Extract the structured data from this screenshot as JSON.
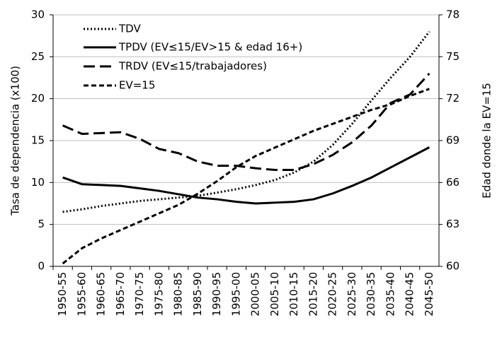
{
  "chart_data": {
    "type": "line",
    "categories": [
      "1950-55",
      "1955-60",
      "1960-65",
      "1965-70",
      "1970-75",
      "1975-80",
      "1980-85",
      "1985-90",
      "1990-95",
      "1995-00",
      "2000-05",
      "2005-10",
      "2010-15",
      "2015-20",
      "2020-25",
      "2025-30",
      "2030-35",
      "2035-40",
      "2040-45",
      "2045-50"
    ],
    "series": [
      {
        "name": "TDV",
        "color": "#000000",
        "linestyle": "dotted",
        "values": [
          6.5,
          6.8,
          7.2,
          7.5,
          7.8,
          8.0,
          8.2,
          8.4,
          8.8,
          9.2,
          9.7,
          10.3,
          11.2,
          12.5,
          14.5,
          17.0,
          19.8,
          22.5,
          25.0,
          28.0
        ]
      },
      {
        "name": "TPDV (EV≤15/EV>15 & edad 16+)",
        "color": "#000000",
        "linestyle": "solid",
        "values": [
          10.6,
          9.8,
          9.7,
          9.6,
          9.3,
          9.0,
          8.6,
          8.2,
          8.0,
          7.7,
          7.5,
          7.6,
          7.7,
          8.0,
          8.7,
          9.6,
          10.6,
          11.8,
          13.0,
          14.2
        ]
      },
      {
        "name": "TRDV (EV≤15/trabajadores)",
        "color": "#000000",
        "linestyle": "longdash",
        "values": [
          16.8,
          15.8,
          15.9,
          16.0,
          15.2,
          14.0,
          13.5,
          12.5,
          12.0,
          12.0,
          11.7,
          11.5,
          11.5,
          12.2,
          13.3,
          14.8,
          16.8,
          19.5,
          20.5,
          23.0
        ]
      },
      {
        "name": "EV=15",
        "color": "#000000",
        "linestyle": "dashed",
        "axis": "y2",
        "values": [
          60.2,
          61.3,
          62.0,
          62.6,
          63.2,
          63.8,
          64.4,
          65.2,
          66.1,
          67.1,
          67.9,
          68.5,
          69.1,
          69.7,
          70.2,
          70.7,
          71.2,
          71.6,
          72.2,
          72.7
        ]
      }
    ],
    "ylabel": "Tasa de dependencia (x100)",
    "y2label": "Edad donde la EV=15",
    "ylim": [
      0,
      30
    ],
    "yticks": [
      0,
      5,
      10,
      15,
      20,
      25,
      30
    ],
    "y2lim": [
      60,
      78
    ],
    "y2ticks": [
      60,
      63,
      66,
      69,
      72,
      75,
      78
    ],
    "grid": true,
    "legend": "upper-left"
  }
}
